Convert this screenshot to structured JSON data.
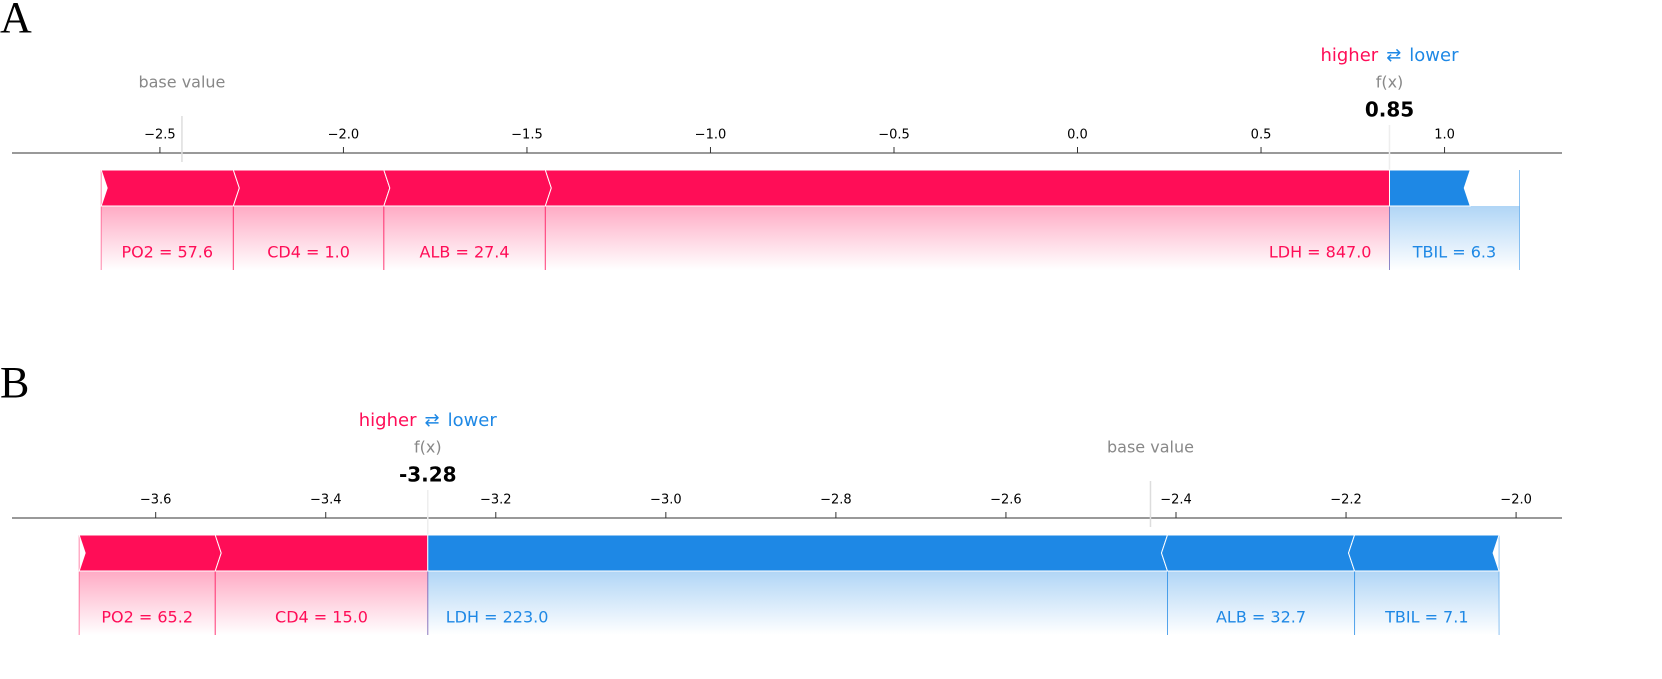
{
  "chart_data": [
    {
      "type": "force",
      "panel": "A",
      "base_label": "base value",
      "fx_label": "f(x)",
      "higher_label": "higher",
      "arrow": "⇄",
      "lower_label": "lower",
      "base_value": -2.44,
      "output_value": 0.85,
      "colors": {
        "positive": "#ff0d57",
        "negative": "#1e88e5"
      },
      "xlim": [
        -2.903,
        1.32
      ],
      "xticks": [
        {
          "value": -2.5,
          "label": "−2.5"
        },
        {
          "value": -2.0,
          "label": "−2.0"
        },
        {
          "value": -1.5,
          "label": "−1.5"
        },
        {
          "value": -1.0,
          "label": "−1.0"
        },
        {
          "value": -0.5,
          "label": "−0.5"
        },
        {
          "value": 0,
          "label": "0.0"
        },
        0.5,
        {
          "value": 1.0,
          "label": "1.0"
        }
      ],
      "features": [
        {
          "name": "PO2 = 57.6",
          "value": 0.36
        },
        {
          "name": "CD4 = 1.0",
          "value": 0.41
        },
        {
          "name": "ALB = 27.4",
          "value": 0.44
        },
        {
          "name": "LDH = 847.0",
          "value": 2.3
        },
        {
          "name": "TBIL = 6.3",
          "value": -0.22
        }
      ]
    },
    {
      "type": "force",
      "panel": "B",
      "base_label": "base value",
      "fx_label": "f(x)",
      "higher_label": "higher",
      "arrow": "⇄",
      "lower_label": "lower",
      "base_value": -2.43,
      "output_value": -3.28,
      "colors": {
        "positive": "#ff0d57",
        "negative": "#1e88e5"
      },
      "xlim": [
        -3.769,
        -1.946
      ],
      "xticks": [
        {
          "value": -3.6,
          "label": "−3.6"
        },
        {
          "value": -3.4,
          "label": "−3.4"
        },
        {
          "value": -3.2,
          "label": "−3.2"
        },
        {
          "value": -3.0,
          "label": "−3.0"
        },
        {
          "value": -2.8,
          "label": "−2.8"
        },
        {
          "value": -2.6,
          "label": "−2.6"
        },
        {
          "value": -2.4,
          "label": "−2.4"
        },
        {
          "value": -2.2,
          "label": "−2.2"
        },
        {
          "value": -2.0,
          "label": "−2.0"
        }
      ],
      "features": [
        {
          "name": "PO2 = 65.2",
          "value": 0.16
        },
        {
          "name": "CD4 = 15.0",
          "value": 0.25
        },
        {
          "name": "LDH = 223.0",
          "value": -0.87
        },
        {
          "name": "ALB = 32.7",
          "value": -0.22
        },
        {
          "name": "TBIL = 7.1",
          "value": -0.17
        }
      ]
    }
  ]
}
